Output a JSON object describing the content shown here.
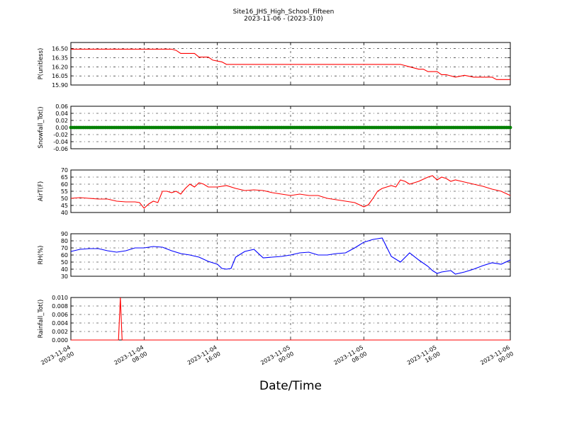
{
  "title": "Site16_JHS_High_School_Fifteen",
  "subtitle": "2023-11-06 - (2023-310)",
  "chart_data": {
    "type": "line",
    "xlabel": "Date/Time",
    "x_range": [
      "2023-11-04 00:00",
      "2023-11-06 00:00"
    ],
    "x_ticks": [
      {
        "value": "2023-11-04 00:00",
        "line1": "2023-11-04",
        "line2": "00:00"
      },
      {
        "value": "2023-11-04 08:00",
        "line1": "2023-11-04",
        "line2": "08:00"
      },
      {
        "value": "2023-11-04 16:00",
        "line1": "2023-11-04",
        "line2": "16:00"
      },
      {
        "value": "2023-11-05 00:00",
        "line1": "2023-11-05",
        "line2": "00:00"
      },
      {
        "value": "2023-11-05 08:00",
        "line1": "2023-11-05",
        "line2": "08:00"
      },
      {
        "value": "2023-11-05 16:00",
        "line1": "2023-11-05",
        "line2": "16:00"
      },
      {
        "value": "2023-11-06 00:00",
        "line1": "2023-11-06",
        "line2": "00:00"
      }
    ],
    "grid": true,
    "panels": [
      {
        "ylabel": "P(unitless)",
        "ylim": [
          15.9,
          16.6
        ],
        "yticks": [
          15.9,
          16.05,
          16.2,
          16.35,
          16.5
        ],
        "tick_decimals": 2,
        "color": "#ff0000",
        "style": "line",
        "x_hours": [
          0,
          11,
          11.5,
          12,
          13.5,
          14,
          14.5,
          15,
          15.5,
          16.5,
          17,
          36,
          37,
          38,
          38.5,
          39,
          40,
          40.5,
          41,
          42,
          43,
          44,
          45,
          46,
          46.5,
          47,
          48
        ],
        "values": [
          16.49,
          16.49,
          16.47,
          16.42,
          16.42,
          16.36,
          16.36,
          16.36,
          16.31,
          16.28,
          16.24,
          16.24,
          16.2,
          16.16,
          16.16,
          16.12,
          16.12,
          16.07,
          16.07,
          16.03,
          16.06,
          16.03,
          16.03,
          16.03,
          15.99,
          15.99,
          15.99
        ]
      },
      {
        "ylabel": "Snowfall_Tot()",
        "ylim": [
          -0.06,
          0.06
        ],
        "yticks": [
          -0.06,
          -0.04,
          -0.02,
          0.0,
          0.02,
          0.04,
          0.06
        ],
        "tick_decimals": 2,
        "color": "#008000",
        "style": "markers",
        "x_hours": [
          0,
          48
        ],
        "values": [
          0.0,
          0.0
        ]
      },
      {
        "ylabel": "AirT(F)",
        "ylim": [
          40,
          70
        ],
        "yticks": [
          40,
          45,
          50,
          55,
          60,
          65,
          70
        ],
        "tick_decimals": 0,
        "color": "#ff0000",
        "style": "line",
        "x_hours": [
          0,
          1,
          2,
          3,
          4,
          5,
          6,
          7,
          7.5,
          8,
          8.5,
          9,
          9.5,
          10,
          10.5,
          11,
          11.5,
          12,
          12.5,
          13,
          13.5,
          14,
          14.5,
          15,
          16,
          17,
          18,
          19,
          20,
          21,
          22,
          23,
          24,
          25,
          26,
          27,
          28,
          29,
          30,
          31,
          32,
          32.5,
          33,
          33.5,
          34,
          34.5,
          35,
          35.5,
          36,
          36.5,
          37,
          37.5,
          38,
          39,
          39.5,
          40,
          40.5,
          41,
          41.5,
          42,
          43,
          44,
          45,
          46,
          47,
          48
        ],
        "values": [
          50,
          50.5,
          50,
          49.5,
          49.5,
          48,
          47.5,
          47.5,
          47,
          43,
          46,
          48,
          47,
          55,
          55,
          54,
          55,
          53,
          57,
          60,
          58,
          61,
          60,
          58,
          58,
          59,
          57,
          55.5,
          56,
          55.5,
          54,
          53,
          52,
          53,
          52,
          52,
          50,
          49,
          48,
          47,
          44,
          45.5,
          50,
          55,
          57,
          58,
          59,
          58,
          63,
          62,
          60,
          61,
          62,
          65,
          66,
          63,
          65,
          64,
          62,
          63,
          61.5,
          60,
          58.5,
          56.5,
          55,
          52
        ]
      },
      {
        "ylabel": "RH(%)",
        "ylim": [
          30,
          90
        ],
        "yticks": [
          30,
          40,
          50,
          60,
          70,
          80,
          90
        ],
        "tick_decimals": 0,
        "color": "#0000ff",
        "style": "line",
        "x_hours": [
          0,
          1,
          2,
          3,
          4,
          5,
          6,
          7,
          8,
          9,
          10,
          11,
          12,
          13,
          14,
          15,
          16,
          16.5,
          17,
          17.5,
          18,
          19,
          20,
          21,
          22,
          23,
          24,
          25,
          26,
          27,
          28,
          29,
          30,
          31,
          32,
          32.5,
          33,
          33.5,
          34,
          35,
          36,
          37,
          38,
          39,
          39.5,
          40,
          40.5,
          41,
          41.5,
          42,
          43,
          44,
          45,
          46,
          47,
          48
        ],
        "values": [
          65,
          68,
          69,
          69,
          66,
          64,
          66,
          70,
          70,
          72,
          71,
          66,
          62,
          60,
          57,
          51,
          47,
          41,
          40,
          41,
          57,
          65,
          68,
          56,
          57,
          58,
          60,
          63,
          64,
          60,
          60,
          62,
          63,
          70,
          78,
          80,
          82,
          83,
          84,
          58,
          50,
          63,
          53,
          44,
          38,
          34,
          36,
          37,
          38,
          33,
          36,
          40,
          45,
          49,
          47,
          53
        ]
      },
      {
        "ylabel": "Rainfall_Tot()",
        "ylim": [
          0.0,
          0.01
        ],
        "yticks": [
          0.0,
          0.002,
          0.004,
          0.006,
          0.008,
          0.01
        ],
        "tick_decimals": 3,
        "color": "#ff0000",
        "style": "line",
        "x_hours": [
          0,
          5.2,
          5.4,
          5.6,
          48
        ],
        "values": [
          0.0,
          0.0,
          0.01,
          0.0,
          0.0
        ]
      }
    ]
  }
}
